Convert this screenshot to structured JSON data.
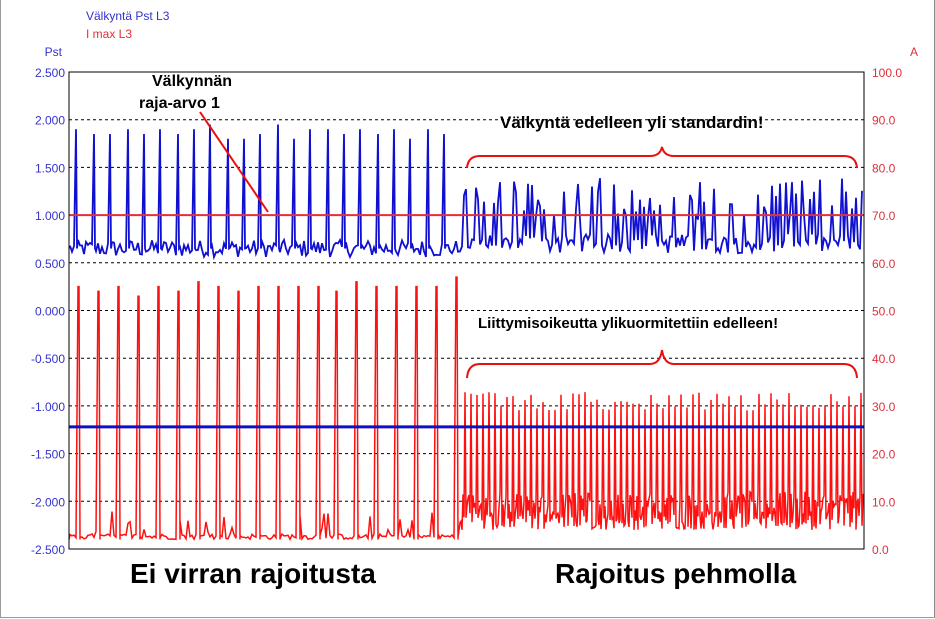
{
  "chart_data": {
    "type": "line",
    "legend": [
      {
        "name": "Välkyntä Pst L3",
        "color": "#3333cc"
      },
      {
        "name": "I max L3",
        "color": "#e0303a"
      }
    ],
    "y_left": {
      "label": "Pst",
      "range": [
        -2.5,
        2.5
      ],
      "ticks": [
        "2.500",
        "2.000",
        "1.500",
        "1.000",
        "0.500",
        "0.000",
        "-0.500",
        "-1.000",
        "-1.500",
        "-2.000",
        "-2.500"
      ]
    },
    "y_right": {
      "label": "A",
      "range": [
        0,
        100
      ],
      "ticks": [
        "100.0",
        "90.0",
        "80.0",
        "70.0",
        "60.0",
        "50.0",
        "40.0",
        "30.0",
        "20.0",
        "10.0",
        "0.0"
      ]
    },
    "grid": "horizontal dashed",
    "limit_line": {
      "value": 1.0,
      "axis": "left",
      "color": "#e0303a"
    },
    "reference_line": {
      "value": -1.22,
      "axis": "left",
      "color": "#1010c0"
    },
    "series": [
      {
        "name": "Välkyntä Pst L3",
        "axis": "left",
        "baseline_before": 0.65,
        "peaks_before": [
          1.9,
          1.85,
          1.85,
          1.9,
          1.85,
          1.9,
          1.85,
          1.9,
          1.95,
          1.8,
          1.8,
          1.85,
          1.95,
          1.8,
          1.9,
          1.9,
          1.85,
          1.9,
          1.85,
          1.9,
          1.8,
          1.9,
          1.85,
          1.5
        ],
        "baseline_after": 0.7,
        "peaks_after_max": 1.5
      },
      {
        "name": "I max L3",
        "axis": "right",
        "baseline_before": 2.0,
        "peaks_before": [
          55,
          54,
          55,
          53,
          55,
          54,
          56,
          55,
          54,
          55,
          55,
          55,
          55,
          54,
          56,
          55,
          55,
          55,
          55,
          57
        ],
        "baseline_after": 4.0,
        "peaks_after_max": 36
      }
    ]
  },
  "annotations": {
    "limit_label_line1": "Välkynnän",
    "limit_label_line2": "raja-arvo 1",
    "flicker_note": "Välkyntä edelleen yli standardin!",
    "overload_note": "Liittymisoikeutta ylikuormitettiin edelleen!",
    "left_region": "Ei virran rajoitusta",
    "right_region": "Rajoitus pehmolla"
  }
}
